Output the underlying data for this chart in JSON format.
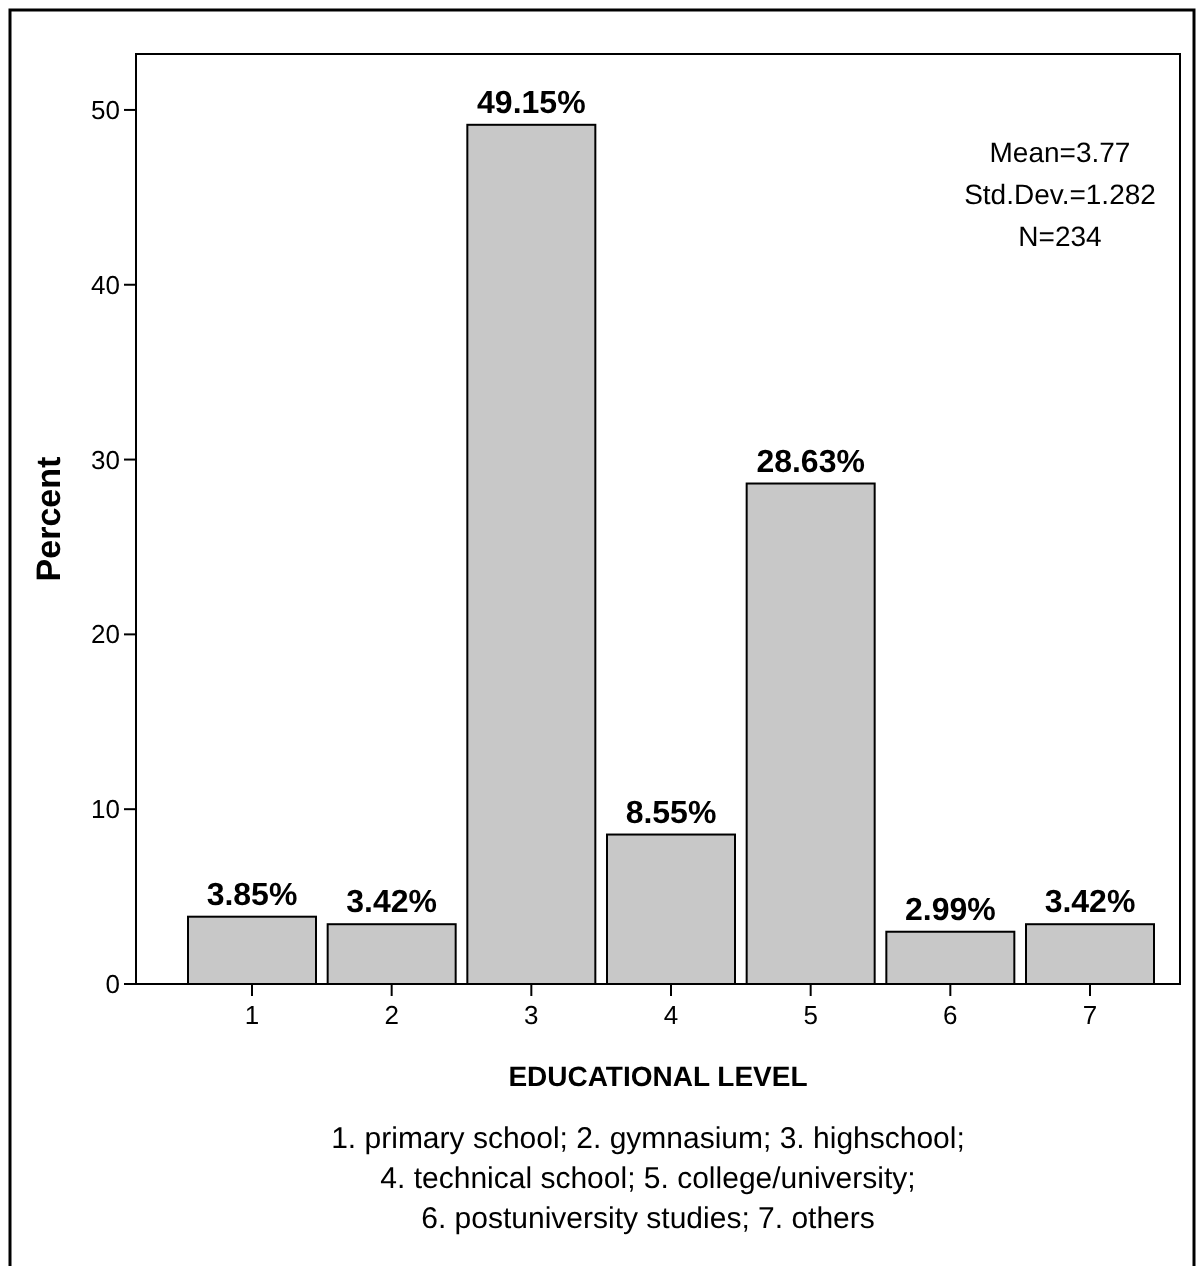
{
  "chart_data": {
    "type": "bar",
    "xlabel": "EDUCATIONAL LEVEL",
    "ylabel": "Percent",
    "categories": [
      "1",
      "2",
      "3",
      "4",
      "5",
      "6",
      "7"
    ],
    "values": [
      3.85,
      3.42,
      49.15,
      8.55,
      28.63,
      2.99,
      3.42
    ],
    "value_labels": [
      "3.85%",
      "3.42%",
      "49.15%",
      "8.55%",
      "28.63%",
      "2.99%",
      "3.42%"
    ],
    "color": "#c8c8c8",
    "ylim": [
      0,
      53.2
    ],
    "yticks": [
      0,
      10,
      20,
      30,
      40,
      50
    ],
    "grid": false,
    "annotations": [
      "Mean=3.77\nStd.Dev.=1.282\nN=234",
      "1. primary school; 2. gymnasium; 3. highschool;\n4. technical school; 5. college/university;\n6. postuniversity studies; 7. others"
    ]
  }
}
